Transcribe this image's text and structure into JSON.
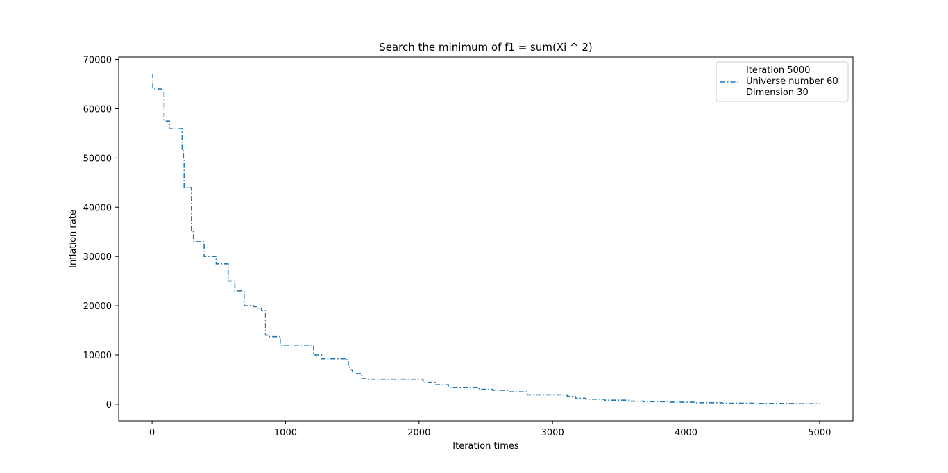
{
  "chart_data": {
    "type": "line",
    "title": "Search the minimum of f1 = sum(Xi ^ 2)",
    "xlabel": "Iteration times",
    "ylabel": "Inflation rate",
    "xlim": [
      -250,
      5250
    ],
    "ylim": [
      -3400,
      70500
    ],
    "xticks": [
      0,
      1000,
      2000,
      3000,
      4000,
      5000
    ],
    "yticks": [
      0,
      10000,
      20000,
      30000,
      40000,
      50000,
      60000,
      70000
    ],
    "grid": false,
    "legend_position": "upper-right",
    "legend_entries": [
      "Iteration 5000",
      "Universe number 60",
      "Dimension 30"
    ],
    "series": [
      {
        "name": "Universe number 60",
        "color": "#1f77b4",
        "linestyle": "dash-dot",
        "drawstyle": "steps",
        "x": [
          0,
          5,
          85,
          90,
          130,
          210,
          225,
          235,
          240,
          285,
          295,
          300,
          310,
          340,
          390,
          405,
          470,
          480,
          560,
          570,
          610,
          620,
          680,
          690,
          760,
          790,
          820,
          850,
          855,
          870,
          950,
          960,
          1200,
          1210,
          1260,
          1270,
          1450,
          1470,
          1480,
          1500,
          1520,
          1560,
          1570,
          1610,
          1620,
          2020,
          2030,
          2110,
          2120,
          2210,
          2220,
          2440,
          2450,
          2540,
          2550,
          2660,
          2670,
          2800,
          2810,
          3100,
          3110,
          3160,
          3170,
          3240,
          3250,
          3380,
          3390,
          3570,
          3580,
          3670,
          3680,
          3860,
          3870,
          4070,
          4080,
          4260,
          4270,
          4500,
          4510,
          4800,
          4810,
          5000
        ],
        "y": [
          67000,
          64000,
          64000,
          57500,
          56000,
          56000,
          51500,
          49500,
          44000,
          44000,
          35000,
          35000,
          33000,
          33000,
          30000,
          30000,
          30000,
          28500,
          28500,
          25000,
          25000,
          23000,
          23000,
          20000,
          19800,
          19500,
          19000,
          14000,
          14000,
          13700,
          13700,
          12000,
          12000,
          10000,
          10000,
          9200,
          9000,
          7500,
          7000,
          6500,
          6200,
          6200,
          5200,
          5200,
          5100,
          5100,
          4400,
          4400,
          3900,
          3900,
          3400,
          3400,
          3000,
          3000,
          2800,
          2800,
          2500,
          2500,
          1900,
          1900,
          1600,
          1600,
          1200,
          1200,
          1000,
          1000,
          800,
          800,
          600,
          600,
          500,
          500,
          400,
          400,
          300,
          300,
          200,
          200,
          150,
          150,
          100,
          100
        ]
      }
    ]
  }
}
